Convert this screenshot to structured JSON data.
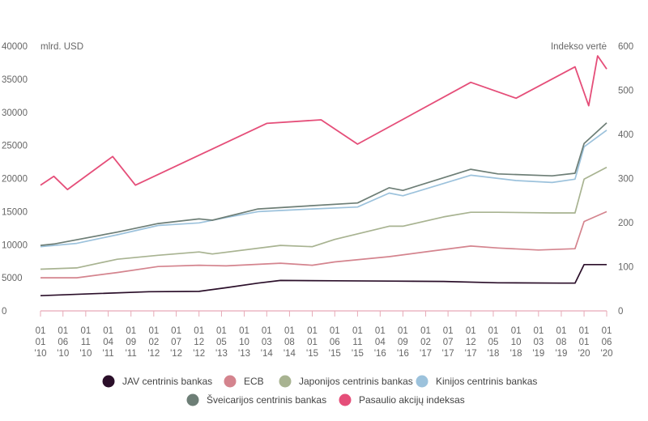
{
  "chart_data": {
    "type": "line",
    "y_left": {
      "label": "mlrd. USD",
      "min": 0,
      "max": 40000,
      "ticks": [
        0,
        5000,
        10000,
        15000,
        20000,
        25000,
        30000,
        35000,
        40000
      ]
    },
    "y_right": {
      "label": "Indekso vertė",
      "min": 0,
      "max": 600,
      "ticks": [
        0,
        100,
        200,
        300,
        400,
        500,
        600
      ]
    },
    "x_range": [
      "2010-01-01",
      "2020-06-01"
    ],
    "x_ticks": [
      {
        "date": "2010-01-01",
        "lines": [
          "01",
          "01",
          "'10"
        ]
      },
      {
        "date": "2010-06-01",
        "lines": [
          "01",
          "06",
          "'10"
        ]
      },
      {
        "date": "2010-11-01",
        "lines": [
          "01",
          "11",
          "'10"
        ]
      },
      {
        "date": "2011-04-01",
        "lines": [
          "01",
          "04",
          "'11"
        ]
      },
      {
        "date": "2011-09-01",
        "lines": [
          "01",
          "09",
          "'11"
        ]
      },
      {
        "date": "2012-02-01",
        "lines": [
          "01",
          "02",
          "'12"
        ]
      },
      {
        "date": "2012-07-01",
        "lines": [
          "01",
          "07",
          "'12"
        ]
      },
      {
        "date": "2012-12-01",
        "lines": [
          "01",
          "12",
          "'12"
        ]
      },
      {
        "date": "2013-05-01",
        "lines": [
          "01",
          "05",
          "'13"
        ]
      },
      {
        "date": "2013-10-01",
        "lines": [
          "01",
          "10",
          "'13"
        ]
      },
      {
        "date": "2014-03-01",
        "lines": [
          "01",
          "03",
          "'14"
        ]
      },
      {
        "date": "2014-08-01",
        "lines": [
          "01",
          "08",
          "'14"
        ]
      },
      {
        "date": "2015-01-01",
        "lines": [
          "01",
          "01",
          "'15"
        ]
      },
      {
        "date": "2015-06-01",
        "lines": [
          "01",
          "06",
          "'15"
        ]
      },
      {
        "date": "2015-11-01",
        "lines": [
          "01",
          "11",
          "'15"
        ]
      },
      {
        "date": "2016-04-01",
        "lines": [
          "01",
          "04",
          "'16"
        ]
      },
      {
        "date": "2016-09-01",
        "lines": [
          "01",
          "09",
          "'16"
        ]
      },
      {
        "date": "2017-02-01",
        "lines": [
          "01",
          "02",
          "'17"
        ]
      },
      {
        "date": "2017-07-01",
        "lines": [
          "01",
          "07",
          "'17"
        ]
      },
      {
        "date": "2017-12-01",
        "lines": [
          "01",
          "12",
          "'17"
        ]
      },
      {
        "date": "2018-05-01",
        "lines": [
          "01",
          "05",
          "'18"
        ]
      },
      {
        "date": "2018-10-01",
        "lines": [
          "01",
          "10",
          "'18"
        ]
      },
      {
        "date": "2019-03-01",
        "lines": [
          "01",
          "03",
          "'19"
        ]
      },
      {
        "date": "2019-08-01",
        "lines": [
          "01",
          "08",
          "'19"
        ]
      },
      {
        "date": "2020-01-01",
        "lines": [
          "01",
          "01",
          "'20"
        ]
      },
      {
        "date": "2020-06-01",
        "lines": [
          "01",
          "06",
          "'20"
        ]
      }
    ],
    "grid": false,
    "legend_position": "bottom",
    "series": [
      {
        "name": "JAV centrinis bankas",
        "color": "#2b0f2a",
        "axis": "left",
        "points": [
          [
            "2010-01-01",
            2300
          ],
          [
            "2011-01-01",
            2600
          ],
          [
            "2012-01-01",
            2900
          ],
          [
            "2012-12-01",
            2950
          ],
          [
            "2013-06-01",
            3500
          ],
          [
            "2014-01-01",
            4200
          ],
          [
            "2014-06-01",
            4600
          ],
          [
            "2015-06-01",
            4550
          ],
          [
            "2016-06-01",
            4500
          ],
          [
            "2017-06-01",
            4450
          ],
          [
            "2018-06-01",
            4250
          ],
          [
            "2019-08-01",
            4200
          ],
          [
            "2019-11-01",
            4200
          ],
          [
            "2020-01-01",
            7000
          ],
          [
            "2020-06-01",
            7000
          ]
        ]
      },
      {
        "name": "ECB",
        "color": "#d4848e",
        "axis": "left",
        "points": [
          [
            "2010-01-01",
            5000
          ],
          [
            "2010-09-01",
            5000
          ],
          [
            "2011-06-01",
            5800
          ],
          [
            "2012-03-01",
            6700
          ],
          [
            "2012-12-01",
            6900
          ],
          [
            "2013-06-01",
            6800
          ],
          [
            "2014-06-01",
            7200
          ],
          [
            "2015-01-01",
            6900
          ],
          [
            "2015-06-01",
            7400
          ],
          [
            "2016-06-01",
            8200
          ],
          [
            "2017-03-01",
            9000
          ],
          [
            "2017-12-01",
            9800
          ],
          [
            "2018-06-01",
            9500
          ],
          [
            "2019-03-01",
            9200
          ],
          [
            "2019-11-01",
            9400
          ],
          [
            "2020-01-01",
            13500
          ],
          [
            "2020-06-01",
            15000
          ]
        ]
      },
      {
        "name": "Japonijos centrinis bankas",
        "color": "#a8b391",
        "axis": "left",
        "points": [
          [
            "2010-01-01",
            6300
          ],
          [
            "2010-09-01",
            6500
          ],
          [
            "2011-06-01",
            7800
          ],
          [
            "2012-03-01",
            8400
          ],
          [
            "2012-12-01",
            8900
          ],
          [
            "2013-03-01",
            8600
          ],
          [
            "2014-06-01",
            9900
          ],
          [
            "2015-01-01",
            9700
          ],
          [
            "2015-06-01",
            10800
          ],
          [
            "2016-06-01",
            12800
          ],
          [
            "2016-09-01",
            12800
          ],
          [
            "2017-06-01",
            14200
          ],
          [
            "2017-12-01",
            14900
          ],
          [
            "2018-06-01",
            14900
          ],
          [
            "2019-06-01",
            14800
          ],
          [
            "2019-11-01",
            14800
          ],
          [
            "2020-01-01",
            19900
          ],
          [
            "2020-06-01",
            21700
          ]
        ]
      },
      {
        "name": "Kinijos centrinis bankas",
        "color": "#9cc2dc",
        "axis": "left",
        "points": [
          [
            "2010-01-01",
            9700
          ],
          [
            "2010-09-01",
            10200
          ],
          [
            "2011-06-01",
            11500
          ],
          [
            "2012-03-01",
            12900
          ],
          [
            "2012-12-01",
            13300
          ],
          [
            "2013-06-01",
            14100
          ],
          [
            "2014-01-01",
            15000
          ],
          [
            "2015-01-01",
            15400
          ],
          [
            "2015-11-01",
            15700
          ],
          [
            "2016-06-01",
            17800
          ],
          [
            "2016-09-01",
            17400
          ],
          [
            "2017-12-01",
            20500
          ],
          [
            "2018-10-01",
            19700
          ],
          [
            "2019-06-01",
            19400
          ],
          [
            "2019-11-01",
            19900
          ],
          [
            "2020-01-01",
            24800
          ],
          [
            "2020-06-01",
            27300
          ]
        ]
      },
      {
        "name": "Šveicarijos centrinis bankas",
        "color": "#6d7e76",
        "axis": "left",
        "points": [
          [
            "2010-01-01",
            9900
          ],
          [
            "2010-04-01",
            10100
          ],
          [
            "2011-06-01",
            11900
          ],
          [
            "2012-03-01",
            13200
          ],
          [
            "2012-12-01",
            13900
          ],
          [
            "2013-03-01",
            13700
          ],
          [
            "2014-01-01",
            15400
          ],
          [
            "2015-01-01",
            15900
          ],
          [
            "2015-11-01",
            16300
          ],
          [
            "2016-06-01",
            18600
          ],
          [
            "2016-09-01",
            18200
          ],
          [
            "2017-12-01",
            21400
          ],
          [
            "2018-06-01",
            20700
          ],
          [
            "2019-06-01",
            20400
          ],
          [
            "2019-11-01",
            20800
          ],
          [
            "2020-01-01",
            25300
          ],
          [
            "2020-06-01",
            28400
          ]
        ]
      },
      {
        "name": "Pasaulio akcijų indeksas",
        "color": "#e54e79",
        "axis": "right",
        "points": [
          [
            "2010-01-01",
            285
          ],
          [
            "2010-04-01",
            305
          ],
          [
            "2010-07-01",
            275
          ],
          [
            "2011-05-01",
            350
          ],
          [
            "2011-10-01",
            285
          ],
          [
            "2014-03-01",
            425
          ],
          [
            "2015-03-01",
            433
          ],
          [
            "2015-11-01",
            378
          ],
          [
            "2017-12-01",
            518
          ],
          [
            "2018-10-01",
            482
          ],
          [
            "2019-11-01",
            553
          ],
          [
            "2020-02-01",
            465
          ],
          [
            "2020-04-01",
            578
          ],
          [
            "2020-06-01",
            548
          ]
        ]
      }
    ]
  }
}
